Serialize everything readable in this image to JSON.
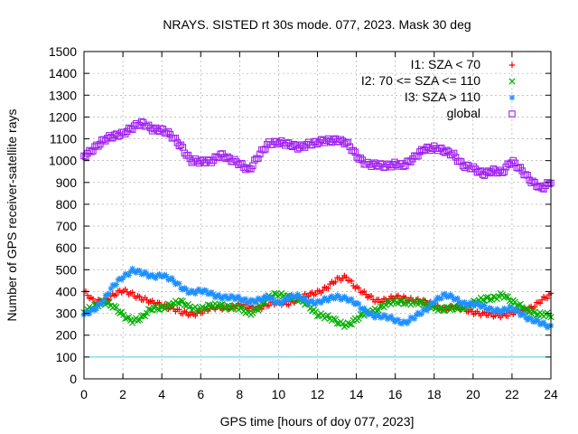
{
  "chart_data": {
    "type": "scatter",
    "title": "NRAYS. SISTED rt 30s mode. 077, 2023. Mask 30 deg",
    "xlabel": "GPS time [hours of doy 077, 2023]",
    "ylabel": "Number of GPS receiver-satellite rays",
    "xlim": [
      0,
      24
    ],
    "ylim": [
      0,
      1500
    ],
    "xticks": [
      0,
      2,
      4,
      6,
      8,
      10,
      12,
      14,
      16,
      18,
      20,
      22,
      24
    ],
    "yticks": [
      0,
      100,
      200,
      300,
      400,
      500,
      600,
      700,
      800,
      900,
      1000,
      1100,
      1200,
      1300,
      1400,
      1500
    ],
    "grid": true,
    "legend_position": "top-right",
    "threshold_line": {
      "y": 100,
      "color": "#40d0e0"
    },
    "series": [
      {
        "name": "I1: SZA < 70",
        "marker": "+",
        "color": "#ff0000",
        "x": [
          0,
          0.5,
          1,
          1.5,
          2,
          2.5,
          3,
          3.5,
          4,
          4.5,
          5,
          5.5,
          6,
          6.5,
          7,
          7.5,
          8,
          8.5,
          9,
          9.5,
          10,
          10.5,
          11,
          11.5,
          12,
          12.5,
          13,
          13.5,
          14,
          14.5,
          15,
          15.5,
          16,
          16.5,
          17,
          17.5,
          18,
          18.5,
          19,
          19.5,
          20,
          20.5,
          21,
          21.5,
          22,
          22.5,
          23,
          23.5,
          24
        ],
        "values": [
          400,
          350,
          360,
          385,
          400,
          390,
          370,
          345,
          340,
          330,
          300,
          295,
          310,
          320,
          325,
          330,
          335,
          325,
          330,
          340,
          345,
          350,
          365,
          380,
          400,
          420,
          450,
          470,
          420,
          380,
          360,
          365,
          370,
          370,
          365,
          350,
          335,
          325,
          325,
          320,
          310,
          295,
          290,
          295,
          300,
          310,
          330,
          360,
          380
        ]
      },
      {
        "name": "I2: 70 <= SZA <= 110",
        "marker": "x",
        "color": "#00b000",
        "x": [
          0,
          0.5,
          1,
          1.5,
          2,
          2.5,
          3,
          3.5,
          4,
          4.5,
          5,
          5.5,
          6,
          6.5,
          7,
          7.5,
          8,
          8.5,
          9,
          9.5,
          10,
          10.5,
          11,
          11.5,
          12,
          12.5,
          13,
          13.5,
          14,
          14.5,
          15,
          15.5,
          16,
          16.5,
          17,
          17.5,
          18,
          18.5,
          19,
          19.5,
          20,
          20.5,
          21,
          21.5,
          22,
          22.5,
          23,
          23.5,
          24
        ],
        "values": [
          300,
          330,
          360,
          330,
          290,
          270,
          280,
          320,
          330,
          340,
          350,
          330,
          320,
          330,
          340,
          330,
          320,
          300,
          330,
          370,
          390,
          380,
          360,
          340,
          300,
          280,
          260,
          250,
          270,
          300,
          320,
          340,
          350,
          355,
          350,
          340,
          330,
          320,
          320,
          330,
          350,
          360,
          370,
          390,
          350,
          330,
          310,
          290,
          290
        ]
      },
      {
        "name": "I3: SZA > 110",
        "marker": "*",
        "color": "#1e90ff",
        "x": [
          0,
          0.5,
          1,
          1.5,
          2,
          2.5,
          3,
          3.5,
          4,
          4.5,
          5,
          5.5,
          6,
          6.5,
          7,
          7.5,
          8,
          8.5,
          9,
          9.5,
          10,
          10.5,
          11,
          11.5,
          12,
          12.5,
          13,
          13.5,
          14,
          14.5,
          15,
          15.5,
          16,
          16.5,
          17,
          17.5,
          18,
          18.5,
          19,
          19.5,
          20,
          20.5,
          21,
          21.5,
          22,
          22.5,
          23,
          23.5,
          24
        ],
        "values": [
          290,
          320,
          360,
          420,
          470,
          500,
          480,
          470,
          480,
          450,
          420,
          400,
          400,
          390,
          380,
          370,
          365,
          360,
          360,
          370,
          350,
          370,
          375,
          360,
          350,
          360,
          380,
          370,
          340,
          310,
          290,
          280,
          270,
          260,
          280,
          310,
          360,
          380,
          370,
          350,
          340,
          330,
          320,
          310,
          320,
          300,
          270,
          250,
          240
        ]
      },
      {
        "name": "global",
        "marker": "square",
        "color": "#a020f0",
        "x": [
          0,
          0.5,
          1,
          1.5,
          2,
          2.5,
          3,
          3.5,
          4,
          4.5,
          5,
          5.5,
          6,
          6.5,
          7,
          7.5,
          8,
          8.5,
          9,
          9.5,
          10,
          10.5,
          11,
          11.5,
          12,
          12.5,
          13,
          13.5,
          14,
          14.5,
          15,
          15.5,
          16,
          16.5,
          17,
          17.5,
          18,
          18.5,
          19,
          19.5,
          20,
          20.5,
          21,
          21.5,
          22,
          22.5,
          23,
          23.5,
          24
        ],
        "values": [
          1020,
          1060,
          1090,
          1110,
          1130,
          1150,
          1170,
          1150,
          1140,
          1110,
          1070,
          1000,
          990,
          1000,
          1030,
          1000,
          990,
          960,
          1020,
          1080,
          1090,
          1070,
          1060,
          1080,
          1080,
          1090,
          1100,
          1080,
          1020,
          990,
          980,
          970,
          990,
          980,
          1010,
          1060,
          1060,
          1040,
          1030,
          980,
          960,
          940,
          960,
          940,
          1000,
          960,
          900,
          870,
          910
        ]
      }
    ]
  }
}
